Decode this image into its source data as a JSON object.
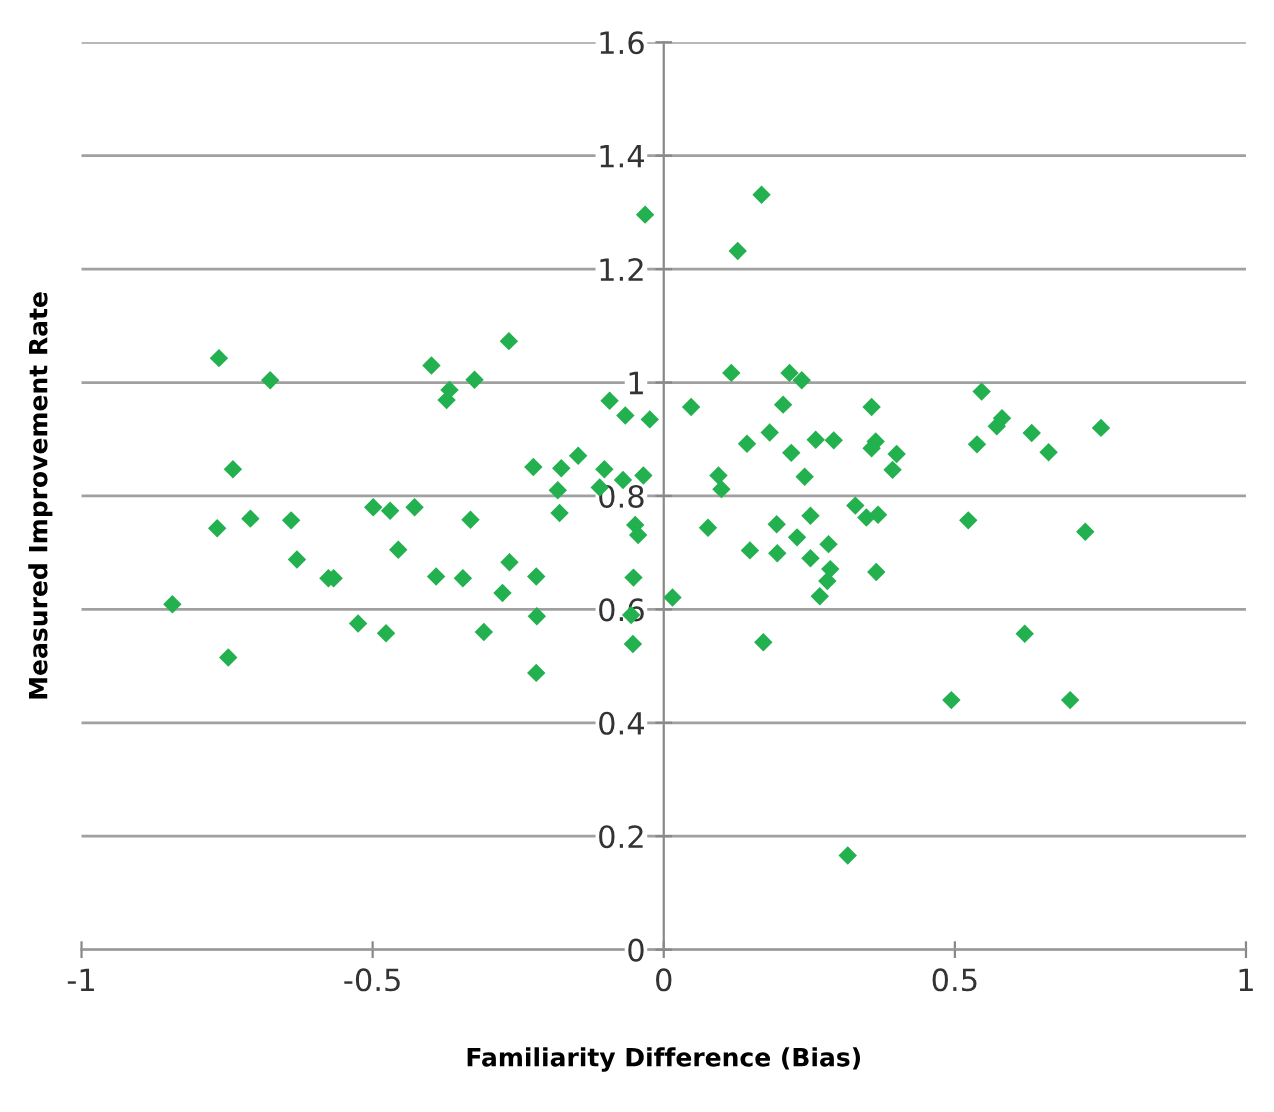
{
  "chart_data": {
    "type": "scatter",
    "xlabel": "Familiarity Difference (Bias)",
    "ylabel": "Measured Improvement Rate",
    "xlim": [
      -1,
      1
    ],
    "ylim": [
      0,
      1.6
    ],
    "xticks": [
      -1,
      -0.5,
      0,
      0.5,
      1
    ],
    "yticks": [
      0,
      0.2,
      0.4,
      0.6,
      0.8,
      1,
      1.2,
      1.4,
      1.6
    ],
    "grid": "y",
    "marker": "diamond",
    "series": [
      {
        "color": "#23b04f",
        "x": [
          -0.844,
          -0.764,
          -0.74,
          -0.767,
          -0.748,
          -0.71,
          -0.676,
          -0.64,
          -0.63,
          -0.576,
          -0.567,
          -0.525,
          -0.499,
          -0.47,
          -0.477,
          -0.456,
          -0.428,
          -0.399,
          -0.391,
          -0.373,
          -0.368,
          -0.332,
          -0.345,
          -0.325,
          -0.309,
          -0.266,
          -0.265,
          -0.277,
          -0.224,
          -0.219,
          -0.219,
          -0.218,
          -0.182,
          -0.176,
          -0.179,
          -0.147,
          -0.11,
          -0.093,
          -0.102,
          -0.07,
          -0.035,
          -0.066,
          -0.024,
          -0.032,
          -0.049,
          -0.044,
          -0.052,
          -0.056,
          -0.053,
          0.015,
          0.168,
          0.127,
          0.116,
          0.216,
          0.237,
          0.047,
          0.205,
          0.357,
          0.546,
          0.182,
          0.143,
          0.219,
          0.261,
          0.292,
          0.364,
          0.357,
          0.4,
          0.393,
          0.242,
          0.094,
          0.099,
          0.581,
          0.572,
          0.632,
          0.538,
          0.661,
          0.751,
          0.329,
          0.348,
          0.368,
          0.252,
          0.194,
          0.076,
          0.229,
          0.148,
          0.195,
          0.283,
          0.252,
          0.286,
          0.281,
          0.268,
          0.365,
          0.523,
          0.724,
          0.171,
          0.62,
          0.494,
          0.698,
          0.316
        ],
        "values": [
          0.609,
          1.043,
          0.847,
          0.743,
          0.515,
          0.76,
          1.004,
          0.757,
          0.688,
          0.655,
          0.655,
          0.575,
          0.78,
          0.774,
          0.558,
          0.705,
          0.78,
          1.03,
          0.658,
          0.969,
          0.987,
          0.758,
          0.655,
          1.005,
          0.56,
          1.073,
          0.683,
          0.629,
          0.851,
          0.658,
          0.488,
          0.588,
          0.81,
          0.849,
          0.77,
          0.871,
          0.815,
          0.968,
          0.847,
          0.828,
          0.836,
          0.942,
          0.935,
          1.296,
          0.749,
          0.731,
          0.656,
          0.59,
          0.539,
          0.621,
          1.331,
          1.232,
          1.017,
          1.017,
          1.004,
          0.957,
          0.961,
          0.957,
          0.984,
          0.912,
          0.892,
          0.876,
          0.899,
          0.898,
          0.896,
          0.884,
          0.874,
          0.846,
          0.834,
          0.836,
          0.812,
          0.937,
          0.923,
          0.911,
          0.891,
          0.877,
          0.92,
          0.783,
          0.762,
          0.767,
          0.765,
          0.75,
          0.744,
          0.727,
          0.704,
          0.699,
          0.715,
          0.69,
          0.671,
          0.65,
          0.623,
          0.666,
          0.757,
          0.737,
          0.542,
          0.557,
          0.44,
          0.44,
          0.166
        ]
      }
    ]
  }
}
